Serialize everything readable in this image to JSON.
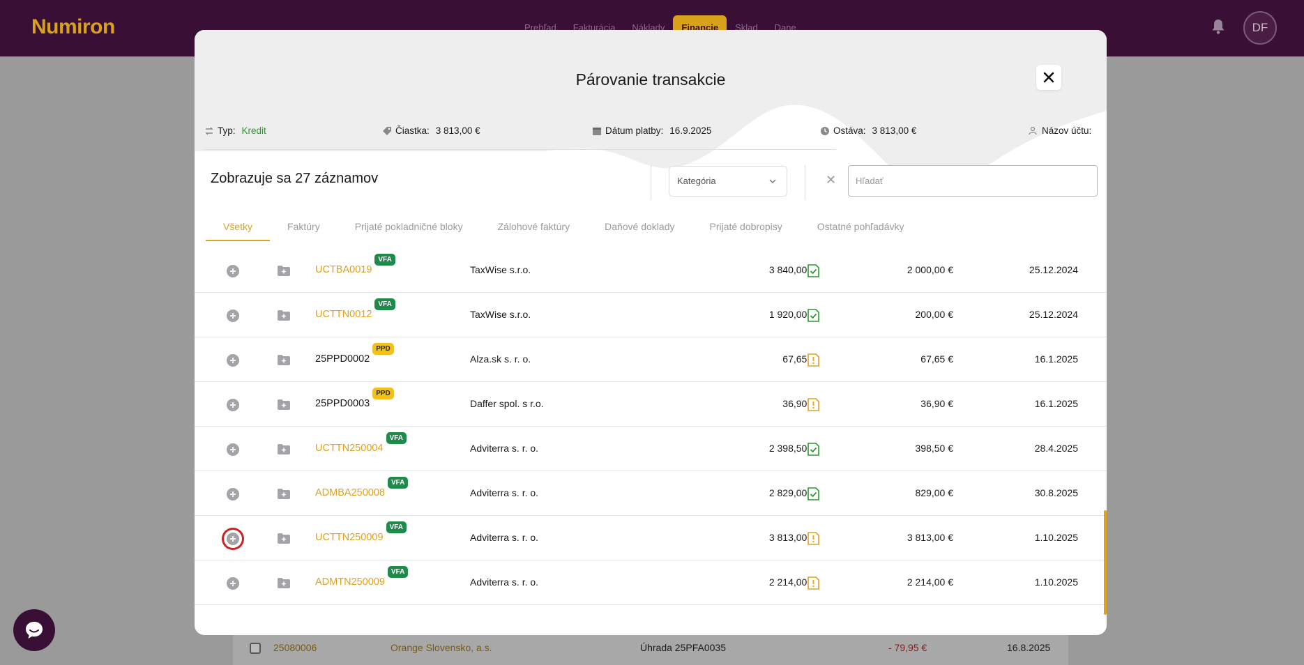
{
  "app": {
    "name": "Numiron"
  },
  "nav": {
    "items": [
      "Prehľad",
      "Fakturácia",
      "Náklady",
      "Financie",
      "Sklad",
      "Dane"
    ],
    "active_index": 3
  },
  "user": {
    "initials": "DF"
  },
  "colors": {
    "brand_dark": "#3a0f35",
    "accent": "#e0a21c",
    "vfa_badge": "#1f8a4a",
    "ppd_badge": "#f2c21a",
    "credit_green": "#2a9a2a"
  },
  "background_row": {
    "number": "25080006",
    "partner": "Orange Slovensko, a.s.",
    "description": "Úhrada 25PFA0035",
    "amount": "- 79,95 €",
    "date": "16.8.2025"
  },
  "modal": {
    "title": "Párovanie transakcie",
    "info": {
      "type_label": "Typ:",
      "type_value": "Kredit",
      "amount_label": "Čiastka:",
      "amount_value": "3 813,00 €",
      "date_label": "Dátum platby:",
      "date_value": "16.9.2025",
      "remaining_label": "Ostáva:",
      "remaining_value": "3 813,00 €",
      "account_label": "Názov účtu:"
    },
    "count_text": "Zobrazuje sa 27 záznamov",
    "category_placeholder": "Kategória",
    "search_placeholder": "Hľadať",
    "tabs": [
      "Všetky",
      "Faktúry",
      "Prijaté pokladničné bloky",
      "Zálohové faktúry",
      "Daňové doklady",
      "Prijaté dobropisy",
      "Ostatné pohľadávky"
    ],
    "rows": [
      {
        "number": "UCTBA0019",
        "badge": "VFA",
        "partner": "TaxWise s.r.o.",
        "amount": "3 840,00 €",
        "status": "ok",
        "remaining": "2 000,00 €",
        "date": "25.12.2024"
      },
      {
        "number": "UCTTN0012",
        "badge": "VFA",
        "partner": "TaxWise s.r.o.",
        "amount": "1 920,00 €",
        "status": "ok",
        "remaining": "200,00 €",
        "date": "25.12.2024"
      },
      {
        "number": "25PPD0002",
        "badge": "PPD",
        "partner": "Alza.sk s. r. o.",
        "amount": "67,65 €",
        "status": "warning",
        "remaining": "67,65 €",
        "date": "16.1.2025"
      },
      {
        "number": "25PPD0003",
        "badge": "PPD",
        "partner": "Daffer spol. s r.o.",
        "amount": "36,90 €",
        "status": "warning",
        "remaining": "36,90 €",
        "date": "16.1.2025"
      },
      {
        "number": "UCTTN250004",
        "badge": "VFA",
        "partner": "Adviterra s. r. o.",
        "amount": "2 398,50 €",
        "status": "ok",
        "remaining": "398,50 €",
        "date": "28.4.2025"
      },
      {
        "number": "ADMBA250008",
        "badge": "VFA",
        "partner": "Adviterra s. r. o.",
        "amount": "2 829,00 €",
        "status": "ok",
        "remaining": "829,00 €",
        "date": "30.8.2025"
      },
      {
        "number": "UCTTN250009",
        "badge": "VFA",
        "partner": "Adviterra s. r. o.",
        "amount": "3 813,00 €",
        "status": "warning",
        "remaining": "3 813,00 €",
        "date": "1.10.2025"
      },
      {
        "number": "ADMTN250009",
        "badge": "VFA",
        "partner": "Adviterra s. r. o.",
        "amount": "2 214,00 €",
        "status": "warning",
        "remaining": "2 214,00 €",
        "date": "1.10.2025"
      }
    ]
  }
}
